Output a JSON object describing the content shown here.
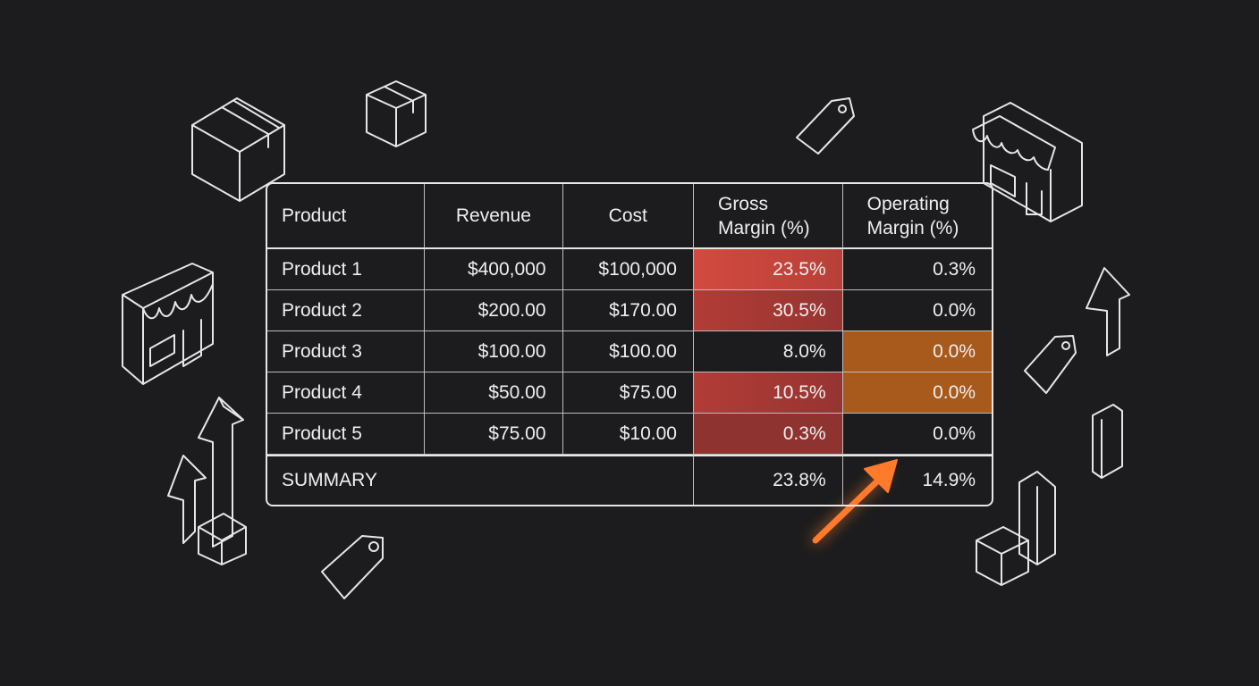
{
  "table": {
    "header": [
      "Product",
      "Revenue",
      "Cost",
      "Gross Margin (%)",
      "Operating Margin (%)"
    ],
    "rows": [
      [
        "Product 1",
        "$400,000",
        "$100,000",
        "23.5%",
        "0.3%"
      ],
      [
        "Product 2",
        "$200.00",
        "$170.00",
        "30.5%",
        "0.0%"
      ],
      [
        "Product 3",
        "$100.00",
        "$100.00",
        "8.0%",
        "0.0%"
      ],
      [
        "Product 4",
        "$50.00",
        "$75.00",
        "10.5%",
        "0.0%"
      ],
      [
        "Product 5",
        "$75.00",
        "$10.00",
        "0.3%",
        "0.0%"
      ]
    ],
    "summary": [
      "SUMMARY",
      "23.8%",
      "14.9%"
    ]
  }
}
